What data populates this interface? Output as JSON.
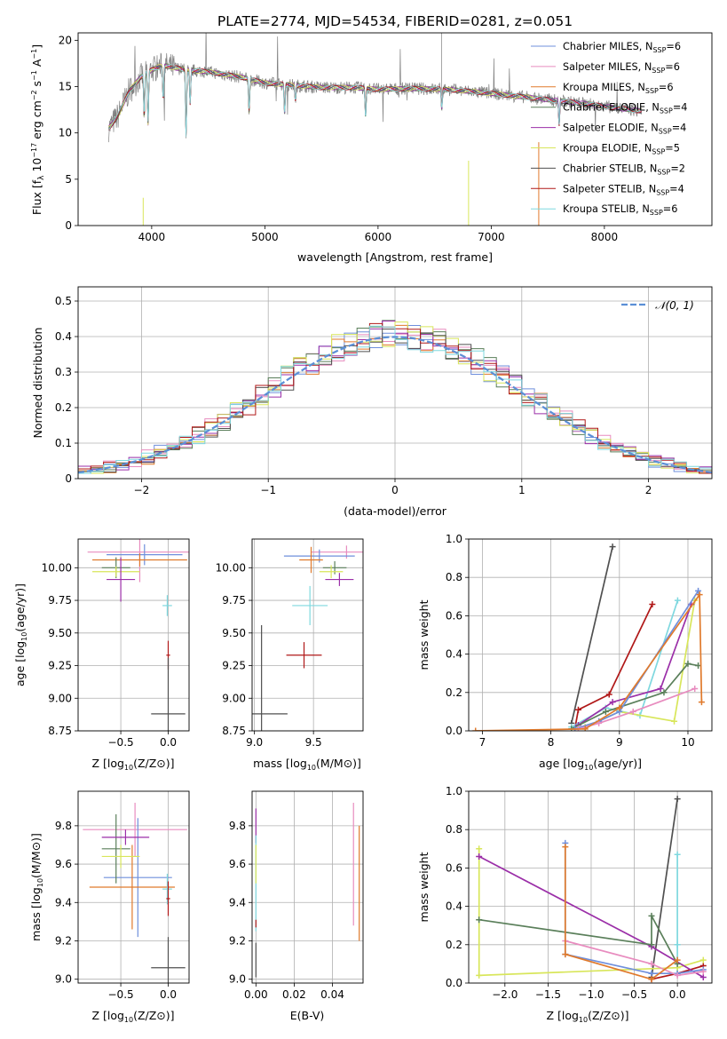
{
  "title": "PLATE=2774, MJD=54534, FIBERID=0281, z=0.051",
  "colors": {
    "cm": "#6f8fdc",
    "sm": "#e88cbf",
    "km": "#e07a2c",
    "ce": "#5a7f5a",
    "se": "#9b2fa8",
    "ke": "#d8e65a",
    "cs": "#505050",
    "ss": "#b01818",
    "ks": "#7fd8df",
    "gauss": "#5b8fd6",
    "data": "#808080"
  },
  "legend": [
    {
      "key": "cm",
      "label": "Chabrier MILES, N",
      "sub": "SSP",
      "suffix": "=6"
    },
    {
      "key": "sm",
      "label": "Salpeter MILES, N",
      "sub": "SSP",
      "suffix": "=6"
    },
    {
      "key": "km",
      "label": "Kroupa MILES, N",
      "sub": "SSP",
      "suffix": "=6"
    },
    {
      "key": "ce",
      "label": "Chabrier ELODIE, N",
      "sub": "SSP",
      "suffix": "=4"
    },
    {
      "key": "se",
      "label": "Salpeter ELODIE, N",
      "sub": "SSP",
      "suffix": "=4"
    },
    {
      "key": "ke",
      "label": "Kroupa ELODIE, N",
      "sub": "SSP",
      "suffix": "=5"
    },
    {
      "key": "cs",
      "label": "Chabrier STELIB, N",
      "sub": "SSP",
      "suffix": "=2"
    },
    {
      "key": "ss",
      "label": "Salpeter STELIB, N",
      "sub": "SSP",
      "suffix": "=4"
    },
    {
      "key": "ks",
      "label": "Kroupa STELIB, N",
      "sub": "SSP",
      "suffix": "=6"
    }
  ],
  "chart_data": [
    {
      "id": "spectrum",
      "type": "line",
      "xlabel": "wavelength [Angstrom, rest frame]",
      "ylabel": "Flux [f",
      "xlim": [
        3350,
        8950
      ],
      "ylim": [
        0,
        20.8
      ],
      "xticks": [
        4000,
        5000,
        6000,
        7000,
        8000
      ],
      "yticks": [
        0,
        5,
        10,
        15,
        20
      ],
      "grid": false,
      "legend_position": "upper right",
      "continuum": [
        [
          3620,
          10.5
        ],
        [
          3700,
          11.8
        ],
        [
          3800,
          14.5
        ],
        [
          3900,
          16.0
        ],
        [
          4000,
          16.8
        ],
        [
          4100,
          17.3
        ],
        [
          4300,
          16.8
        ],
        [
          4500,
          16.6
        ],
        [
          4800,
          16.0
        ],
        [
          5000,
          15.4
        ],
        [
          5200,
          15.2
        ],
        [
          5500,
          14.9
        ],
        [
          5800,
          14.9
        ],
        [
          6000,
          14.7
        ],
        [
          6300,
          14.8
        ],
        [
          6600,
          14.7
        ],
        [
          6900,
          14.4
        ],
        [
          7200,
          14.0
        ],
        [
          7500,
          13.6
        ],
        [
          7800,
          13.2
        ],
        [
          8100,
          12.7
        ],
        [
          8300,
          12.4
        ]
      ],
      "absorption": [
        [
          3934,
          4.5
        ],
        [
          3968,
          5.5
        ],
        [
          4102,
          3.5
        ],
        [
          4304,
          7.0
        ],
        [
          4340,
          3.5
        ],
        [
          4861,
          3.5
        ],
        [
          5175,
          3.0
        ],
        [
          5270,
          1.5
        ],
        [
          5890,
          3.0
        ],
        [
          6563,
          2.0
        ],
        [
          7600,
          2.5
        ]
      ]
    },
    {
      "id": "residual_hist",
      "type": "step",
      "xlabel": "(data-model)/error",
      "ylabel": "Normed distribution",
      "xlim": [
        -2.5,
        2.5
      ],
      "ylim": [
        0,
        0.54
      ],
      "xticks": [
        -2,
        -1,
        0,
        1,
        2
      ],
      "yticks": [
        0.0,
        0.1,
        0.2,
        0.3,
        0.4,
        0.5
      ],
      "grid": true,
      "gauss_label": "𝒩(0, 1)",
      "bin_width": 0.1,
      "bin_start": -2.5
    },
    {
      "id": "z_age",
      "type": "errorbar",
      "xlabel": "Z [log",
      "ylabel": "age  [log",
      "xlim": [
        -0.95,
        0.22
      ],
      "ylim": [
        8.75,
        10.22
      ],
      "xticks": [
        -0.5,
        0.0
      ],
      "xticklabels": [
        "−0.5",
        "0.0"
      ],
      "yticks": [
        8.75,
        9.0,
        9.25,
        9.5,
        9.75,
        10.0
      ],
      "yticklabels": [
        "8.75",
        "9.00",
        "9.25",
        "9.50",
        "9.75",
        "10.00"
      ],
      "points": [
        {
          "k": "sm",
          "x": -0.3,
          "xe": 0.55,
          "y": 10.12,
          "ye": 0.23
        },
        {
          "k": "cm",
          "x": -0.25,
          "xe": 0.4,
          "y": 10.1,
          "ye": 0.08
        },
        {
          "k": "km",
          "x": -0.3,
          "xe": 0.5,
          "y": 10.06,
          "ye": 0.05
        },
        {
          "k": "ce",
          "x": -0.55,
          "xe": 0.15,
          "y": 10.0,
          "ye": 0.08
        },
        {
          "k": "ke",
          "x": -0.55,
          "xe": 0.25,
          "y": 9.97,
          "ye": 0.04
        },
        {
          "k": "se",
          "x": -0.5,
          "xe": 0.15,
          "y": 9.91,
          "ye": 0.17
        },
        {
          "k": "ks",
          "x": -0.01,
          "xe": 0.05,
          "y": 9.71,
          "ye": 0.08
        },
        {
          "k": "ss",
          "x": 0.0,
          "xe": 0.02,
          "y": 9.33,
          "ye": 0.11
        },
        {
          "k": "cs",
          "x": 0.0,
          "xe": 0.18,
          "y": 8.88,
          "ye": 0.43
        }
      ]
    },
    {
      "id": "mass_age",
      "type": "errorbar",
      "xlabel": "mass [log",
      "ylabel": "",
      "xlim": [
        8.98,
        9.92
      ],
      "ylim": [
        8.75,
        10.22
      ],
      "xticks": [
        9.0,
        9.5
      ],
      "xticklabels": [
        "9.0",
        "9.5"
      ],
      "yticks": [
        8.75,
        9.0,
        9.25,
        9.5,
        9.75,
        10.0
      ],
      "yticklabels": [
        "8.75",
        "9.00",
        "9.25",
        "9.50",
        "9.75",
        "10.00"
      ],
      "points": [
        {
          "k": "sm",
          "x": 9.78,
          "xe": 0.3,
          "y": 10.12,
          "ye": 0.05
        },
        {
          "k": "cm",
          "x": 9.55,
          "xe": 0.3,
          "y": 10.09,
          "ye": 0.05
        },
        {
          "k": "km",
          "x": 9.48,
          "xe": 0.1,
          "y": 10.06,
          "ye": 0.1
        },
        {
          "k": "ce",
          "x": 9.68,
          "xe": 0.1,
          "y": 10.0,
          "ye": 0.05
        },
        {
          "k": "ke",
          "x": 9.65,
          "xe": 0.1,
          "y": 9.97,
          "ye": 0.05
        },
        {
          "k": "se",
          "x": 9.72,
          "xe": 0.12,
          "y": 9.91,
          "ye": 0.05
        },
        {
          "k": "ks",
          "x": 9.47,
          "xe": 0.15,
          "y": 9.71,
          "ye": 0.15
        },
        {
          "k": "ss",
          "x": 9.42,
          "xe": 0.15,
          "y": 9.33,
          "ye": 0.1
        },
        {
          "k": "cs",
          "x": 9.06,
          "xe": 0.22,
          "y": 8.88,
          "ye": 0.68
        }
      ]
    },
    {
      "id": "age_weight",
      "type": "line_marker",
      "xlabel": "age  [log",
      "ylabel": "mass weight",
      "xlim": [
        6.8,
        10.35
      ],
      "ylim": [
        0,
        1.0
      ],
      "xticks": [
        7,
        8,
        9,
        10
      ],
      "xticklabels": [
        "7",
        "8",
        "9",
        "10"
      ],
      "yticks": [
        0,
        0.2,
        0.4,
        0.6,
        0.8,
        1.0
      ],
      "yticklabels": [
        "0.0",
        "0.2",
        "0.4",
        "0.6",
        "0.8",
        "1.0"
      ],
      "grid": true,
      "series": [
        {
          "k": "cs",
          "x": [
            8.3,
            8.9
          ],
          "y": [
            0.04,
            0.96
          ]
        },
        {
          "k": "ss",
          "x": [
            8.35,
            8.4,
            8.85,
            9.48
          ],
          "y": [
            0.01,
            0.11,
            0.19,
            0.66
          ]
        },
        {
          "k": "ks",
          "x": [
            8.3,
            8.8,
            9.3,
            9.85
          ],
          "y": [
            0.02,
            0.12,
            0.08,
            0.68
          ]
        },
        {
          "k": "ke",
          "x": [
            8.5,
            9.0,
            9.8,
            10.1
          ],
          "y": [
            0.02,
            0.1,
            0.05,
            0.68
          ]
        },
        {
          "k": "se",
          "x": [
            8.4,
            8.9,
            9.6,
            10.05
          ],
          "y": [
            0.03,
            0.15,
            0.22,
            0.66
          ]
        },
        {
          "k": "ce",
          "x": [
            8.3,
            8.8,
            9.65,
            10.0,
            10.15
          ],
          "y": [
            0.01,
            0.1,
            0.2,
            0.35,
            0.34
          ]
        },
        {
          "k": "cm",
          "x": [
            8.35,
            8.7,
            9.0,
            10.15
          ],
          "y": [
            0.01,
            0.05,
            0.1,
            0.73
          ]
        },
        {
          "k": "sm",
          "x": [
            8.4,
            8.7,
            9.2,
            10.1
          ],
          "y": [
            0.01,
            0.04,
            0.1,
            0.22
          ]
        },
        {
          "k": "km",
          "x": [
            6.9,
            8.5,
            9.0,
            10.17,
            10.2
          ],
          "y": [
            0.0,
            0.01,
            0.12,
            0.71,
            0.15
          ]
        }
      ]
    },
    {
      "id": "z_mass",
      "type": "errorbar",
      "xlabel": "Z [log",
      "ylabel": "mass [log",
      "xlim": [
        -0.95,
        0.22
      ],
      "ylim": [
        8.98,
        9.98
      ],
      "xticks": [
        -0.5,
        0.0
      ],
      "xticklabels": [
        "−0.5",
        "0.0"
      ],
      "yticks": [
        9.0,
        9.2,
        9.4,
        9.6,
        9.8
      ],
      "yticklabels": [
        "9.0",
        "9.2",
        "9.4",
        "9.6",
        "9.8"
      ],
      "points": [
        {
          "k": "sm",
          "x": -0.35,
          "xe": 0.55,
          "y": 9.78,
          "ye": 0.14
        },
        {
          "k": "cm",
          "x": -0.32,
          "xe": 0.36,
          "y": 9.53,
          "ye": 0.31
        },
        {
          "k": "km",
          "x": -0.38,
          "xe": 0.45,
          "y": 9.48,
          "ye": 0.22
        },
        {
          "k": "ce",
          "x": -0.55,
          "xe": 0.15,
          "y": 9.68,
          "ye": 0.18
        },
        {
          "k": "ke",
          "x": -0.5,
          "xe": 0.2,
          "y": 9.64,
          "ye": 0.06
        },
        {
          "k": "se",
          "x": -0.45,
          "xe": 0.25,
          "y": 9.74,
          "ye": 0.04
        },
        {
          "k": "ks",
          "x": -0.01,
          "xe": 0.05,
          "y": 9.47,
          "ye": 0.08
        },
        {
          "k": "ss",
          "x": 0.0,
          "xe": 0.02,
          "y": 9.42,
          "ye": 0.09
        },
        {
          "k": "cs",
          "x": 0.0,
          "xe": 0.18,
          "y": 9.06,
          "ye": 0.16
        }
      ]
    },
    {
      "id": "ebv_mass",
      "type": "errorbar",
      "xlabel": "E(B-V)",
      "ylabel": "",
      "xlim": [
        -0.002,
        0.056
      ],
      "ylim": [
        8.98,
        9.98
      ],
      "xticks": [
        0.0,
        0.02,
        0.04
      ],
      "xticklabels": [
        "0.00",
        "0.02",
        "0.04"
      ],
      "yticks": [
        9.0,
        9.2,
        9.4,
        9.6,
        9.8
      ],
      "yticklabels": [
        "9.0",
        "9.2",
        "9.4",
        "9.6",
        "9.8"
      ],
      "points": [
        {
          "k": "se",
          "x": 0.0,
          "xe": 0.0,
          "y": 9.8,
          "ye": 0.09
        },
        {
          "k": "ks",
          "x": 0.0,
          "xe": 0.0,
          "y": 9.5,
          "ye": 0.25
        },
        {
          "k": "cs",
          "x": 0.0,
          "xe": 0.0,
          "y": 9.1,
          "ye": 0.09
        },
        {
          "k": "ss",
          "x": 0.0,
          "xe": 0.0,
          "y": 9.29,
          "ye": 0.02
        },
        {
          "k": "ke",
          "x": 0.0,
          "xe": 0.0,
          "y": 9.6,
          "ye": 0.1
        },
        {
          "k": "sm",
          "x": 0.051,
          "xe": 0.0,
          "y": 9.6,
          "ye": 0.32
        },
        {
          "k": "km",
          "x": 0.054,
          "xe": 0.0,
          "y": 9.5,
          "ye": 0.3
        }
      ]
    },
    {
      "id": "z_weight",
      "type": "line_marker",
      "xlabel": "Z [log",
      "ylabel": "mass weight",
      "xlim": [
        -2.42,
        0.4
      ],
      "ylim": [
        0,
        1.0
      ],
      "xticks": [
        -2.0,
        -1.5,
        -1.0,
        -0.5,
        0.0
      ],
      "xticklabels": [
        "−2.0",
        "−1.5",
        "−1.0",
        "−0.5",
        "0.0"
      ],
      "yticks": [
        0,
        0.2,
        0.4,
        0.6,
        0.8,
        1.0
      ],
      "yticklabels": [
        "0.0",
        "0.2",
        "0.4",
        "0.6",
        "0.8",
        "1.0"
      ],
      "grid": true,
      "series": [
        {
          "k": "cs",
          "x": [
            -0.3,
            0.0
          ],
          "y": [
            0.03,
            0.96
          ]
        },
        {
          "k": "ss",
          "x": [
            -0.3,
            0.0,
            0.3
          ],
          "y": [
            0.02,
            0.05,
            0.09
          ]
        },
        {
          "k": "ks",
          "x": [
            0.0,
            0.0,
            0.0
          ],
          "y": [
            0.05,
            0.2,
            0.67
          ]
        },
        {
          "k": "ke",
          "x": [
            -2.3,
            -2.3,
            0.0,
            0.3
          ],
          "y": [
            0.7,
            0.04,
            0.08,
            0.12
          ]
        },
        {
          "k": "se",
          "x": [
            -2.3,
            -0.3,
            0.3
          ],
          "y": [
            0.66,
            0.19,
            0.03
          ]
        },
        {
          "k": "ce",
          "x": [
            -2.3,
            -0.3,
            -0.3,
            0.0
          ],
          "y": [
            0.33,
            0.2,
            0.35,
            0.1
          ]
        },
        {
          "k": "cm",
          "x": [
            -1.3,
            -1.3,
            -0.3,
            0.0,
            0.3
          ],
          "y": [
            0.73,
            0.15,
            0.05,
            0.05,
            0.07
          ]
        },
        {
          "k": "sm",
          "x": [
            -1.3,
            -0.3,
            0.0,
            0.3
          ],
          "y": [
            0.22,
            0.1,
            0.04,
            0.06
          ]
        },
        {
          "k": "km",
          "x": [
            -1.3,
            -1.3,
            -0.3,
            0.0
          ],
          "y": [
            0.71,
            0.15,
            0.02,
            0.12
          ]
        }
      ]
    }
  ]
}
